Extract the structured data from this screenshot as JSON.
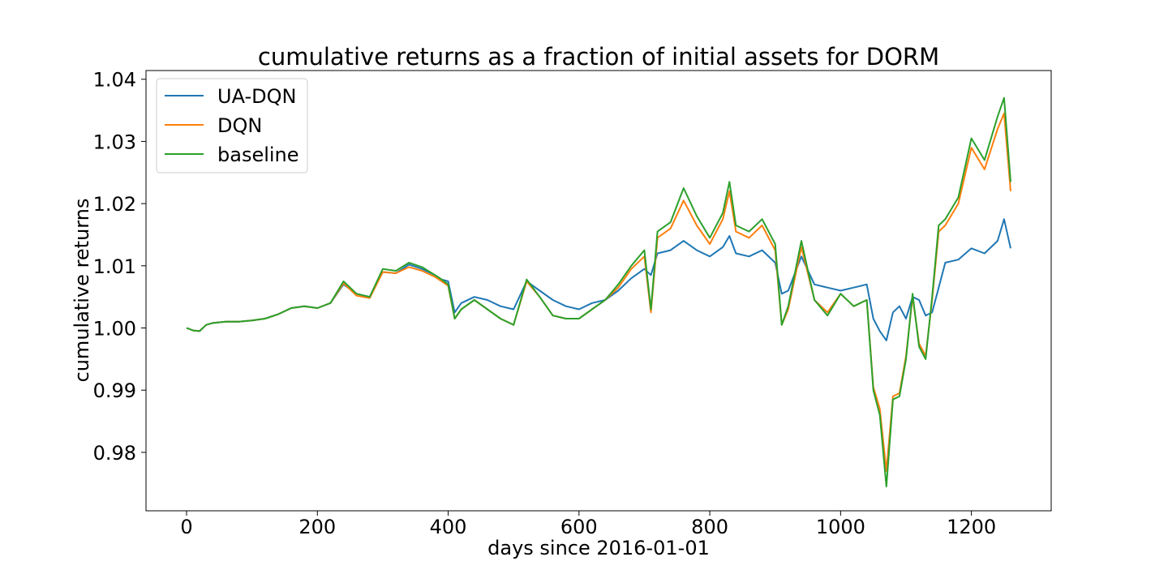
{
  "chart_data": {
    "type": "line",
    "title": "cumulative returns as a fraction of initial assets for DORM",
    "xlabel": "days since 2016-01-01",
    "ylabel": "cumulative returns",
    "xlim": [
      -62,
      1322
    ],
    "ylim": [
      0.9706,
      1.0414
    ],
    "xticks": [
      0,
      200,
      400,
      600,
      800,
      1000,
      1200
    ],
    "xtick_labels": [
      "0",
      "200",
      "400",
      "600",
      "800",
      "1000",
      "1200"
    ],
    "yticks": [
      0.98,
      0.99,
      1.0,
      1.01,
      1.02,
      1.03,
      1.04
    ],
    "ytick_labels": [
      "0.98",
      "0.99",
      "1.00",
      "1.01",
      "1.02",
      "1.03",
      "1.04"
    ],
    "legend_position": "top-left",
    "grid": false,
    "series": [
      {
        "name": "UA-DQN",
        "color": "#1f77b4",
        "x": [
          0,
          10,
          20,
          30,
          40,
          60,
          80,
          100,
          120,
          140,
          160,
          180,
          200,
          220,
          240,
          260,
          280,
          300,
          320,
          340,
          360,
          380,
          390,
          400,
          410,
          420,
          440,
          460,
          480,
          500,
          520,
          540,
          560,
          580,
          600,
          620,
          640,
          660,
          680,
          700,
          710,
          720,
          740,
          760,
          780,
          800,
          820,
          830,
          840,
          860,
          880,
          900,
          910,
          920,
          940,
          960,
          980,
          1000,
          1020,
          1040,
          1050,
          1060,
          1070,
          1080,
          1090,
          1100,
          1110,
          1120,
          1130,
          1140,
          1150,
          1160,
          1180,
          1200,
          1220,
          1240,
          1250,
          1260
        ],
        "y": [
          1.0,
          0.9996,
          0.9995,
          1.0005,
          1.0008,
          1.001,
          1.001,
          1.0012,
          1.0015,
          1.0022,
          1.0032,
          1.0035,
          1.0032,
          1.004,
          1.007,
          1.0055,
          1.005,
          1.009,
          1.0088,
          1.0102,
          1.0095,
          1.0085,
          1.0078,
          1.0075,
          1.0025,
          1.004,
          1.005,
          1.0045,
          1.0035,
          1.003,
          1.0075,
          1.006,
          1.0045,
          1.0035,
          1.003,
          1.004,
          1.0045,
          1.006,
          1.008,
          1.0095,
          1.0085,
          1.012,
          1.0125,
          1.014,
          1.0125,
          1.0115,
          1.013,
          1.0148,
          1.012,
          1.0115,
          1.0125,
          1.0105,
          1.0055,
          1.006,
          1.0115,
          1.007,
          1.0065,
          1.006,
          1.0065,
          1.007,
          1.0015,
          0.9995,
          0.998,
          1.0025,
          1.0035,
          1.0015,
          1.005,
          1.0045,
          1.002,
          1.0025,
          1.0065,
          1.0105,
          1.011,
          1.0128,
          1.012,
          1.014,
          1.0175,
          1.0128
        ]
      },
      {
        "name": "DQN",
        "color": "#ff7f0e",
        "x": [
          0,
          10,
          20,
          30,
          40,
          60,
          80,
          100,
          120,
          140,
          160,
          180,
          200,
          220,
          240,
          260,
          280,
          300,
          320,
          340,
          360,
          380,
          390,
          400,
          410,
          420,
          440,
          460,
          480,
          500,
          520,
          540,
          560,
          580,
          600,
          620,
          640,
          660,
          680,
          700,
          710,
          720,
          740,
          760,
          780,
          800,
          820,
          830,
          840,
          860,
          880,
          900,
          910,
          920,
          940,
          960,
          980,
          1000,
          1020,
          1040,
          1050,
          1060,
          1070,
          1080,
          1090,
          1100,
          1110,
          1120,
          1130,
          1140,
          1150,
          1160,
          1180,
          1200,
          1220,
          1240,
          1250,
          1260
        ],
        "y": [
          1.0,
          0.9996,
          0.9995,
          1.0005,
          1.0008,
          1.001,
          1.001,
          1.0012,
          1.0015,
          1.0022,
          1.0032,
          1.0035,
          1.0032,
          1.004,
          1.0072,
          1.0052,
          1.0048,
          1.009,
          1.0088,
          1.0098,
          1.0092,
          1.0082,
          1.0075,
          1.0068,
          1.0015,
          1.003,
          1.0045,
          1.003,
          1.0015,
          1.0005,
          1.0075,
          1.005,
          1.002,
          1.0015,
          1.0015,
          1.003,
          1.0045,
          1.0065,
          1.0095,
          1.0115,
          1.0025,
          1.0145,
          1.016,
          1.0205,
          1.0165,
          1.0135,
          1.0175,
          1.022,
          1.0155,
          1.0145,
          1.0165,
          1.0125,
          1.0005,
          1.003,
          1.013,
          1.0045,
          1.0025,
          1.0055,
          1.0035,
          1.0045,
          0.9905,
          0.987,
          0.977,
          0.989,
          0.9895,
          0.9955,
          1.005,
          0.9975,
          0.9955,
          1.0045,
          1.0155,
          1.0165,
          1.02,
          1.029,
          1.0255,
          1.032,
          1.0345,
          1.022
        ]
      },
      {
        "name": "baseline",
        "color": "#2ca02c",
        "x": [
          0,
          10,
          20,
          30,
          40,
          60,
          80,
          100,
          120,
          140,
          160,
          180,
          200,
          220,
          240,
          260,
          280,
          300,
          320,
          340,
          360,
          380,
          390,
          400,
          410,
          420,
          440,
          460,
          480,
          500,
          520,
          540,
          560,
          580,
          600,
          620,
          640,
          660,
          680,
          700,
          710,
          720,
          740,
          760,
          780,
          800,
          820,
          830,
          840,
          860,
          880,
          900,
          910,
          920,
          940,
          960,
          980,
          1000,
          1020,
          1040,
          1050,
          1060,
          1070,
          1080,
          1090,
          1100,
          1110,
          1120,
          1130,
          1140,
          1150,
          1160,
          1180,
          1200,
          1220,
          1240,
          1250,
          1260
        ],
        "y": [
          1.0,
          0.9996,
          0.9995,
          1.0005,
          1.0008,
          1.001,
          1.001,
          1.0012,
          1.0015,
          1.0022,
          1.0032,
          1.0035,
          1.0032,
          1.004,
          1.0075,
          1.0055,
          1.005,
          1.0095,
          1.0092,
          1.0105,
          1.0098,
          1.0085,
          1.0078,
          1.007,
          1.0015,
          1.003,
          1.0045,
          1.003,
          1.0015,
          1.0005,
          1.0078,
          1.005,
          1.002,
          1.0015,
          1.0015,
          1.003,
          1.0045,
          1.007,
          1.01,
          1.0125,
          1.003,
          1.0155,
          1.017,
          1.0225,
          1.018,
          1.0145,
          1.0185,
          1.0235,
          1.0165,
          1.0155,
          1.0175,
          1.0135,
          1.0005,
          1.0035,
          1.014,
          1.0045,
          1.002,
          1.0055,
          1.0035,
          1.0045,
          0.99,
          0.986,
          0.9745,
          0.9885,
          0.989,
          0.995,
          1.0055,
          0.997,
          0.995,
          1.005,
          1.0165,
          1.0175,
          1.021,
          1.0305,
          1.027,
          1.034,
          1.037,
          1.0235
        ]
      }
    ]
  }
}
